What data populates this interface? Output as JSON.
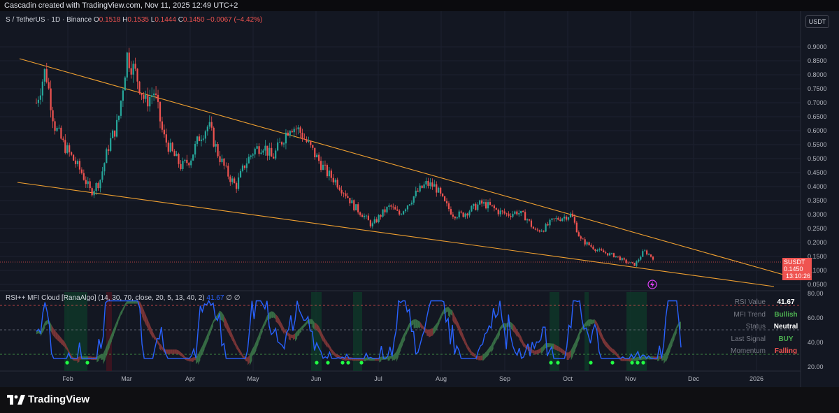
{
  "header": {
    "credit": "Cascadin created with TradingView.com, Nov 11, 2025 12:49 UTC+2"
  },
  "legend": {
    "symbol": "S / TetherUS · 1D · Binance",
    "o_label": "O",
    "o": "0.1518",
    "h_label": "H",
    "h": "0.1535",
    "l_label": "L",
    "l": "0.1444",
    "c_label": "C",
    "c": "0.1450",
    "change": "−0.0067 (−4.42%)"
  },
  "currency_button": "USDT",
  "price_tag": {
    "symbol": "SUSDT",
    "price": "0.1450",
    "countdown": "13:10:26"
  },
  "indicator": {
    "name": "RSI++ MFI Cloud [RanaAlgo] (14, 30, 70, close, 20, 5, 13, 40, 2)",
    "value": "41.67",
    "extra": "∅ ∅"
  },
  "info_table": [
    {
      "key": "RSI Value",
      "value": "41.67",
      "color": "#ffffff"
    },
    {
      "key": "MFI Trend",
      "value": "Bullish",
      "color": "#4caf50"
    },
    {
      "key": "Status",
      "value": "Neutral",
      "color": "#ffffff"
    },
    {
      "key": "Last Signal",
      "value": "BUY",
      "color": "#4caf50"
    },
    {
      "key": "Momentum",
      "value": "Falling",
      "color": "#ef5350"
    }
  ],
  "footer": {
    "brand": "TradingView"
  },
  "chart_data": {
    "type": "candlestick",
    "price_axis": {
      "ticks": [
        "0.9000",
        "0.8500",
        "0.8000",
        "0.7500",
        "0.7000",
        "0.6500",
        "0.6000",
        "0.5500",
        "0.5000",
        "0.4500",
        "0.4000",
        "0.3500",
        "0.3000",
        "0.2500",
        "0.2000",
        "0.1500",
        "0.1000",
        "0.0500"
      ],
      "ylim": [
        0.05,
        0.9
      ]
    },
    "time_axis": [
      "Feb",
      "Mar",
      "Apr",
      "May",
      "Jun",
      "Jul",
      "Aug",
      "Sep",
      "Oct",
      "Nov",
      "Dec",
      "2026"
    ],
    "indicator_axis": {
      "ticks": [
        "80.00",
        "60.00",
        "40.00",
        "20.00"
      ],
      "ylim": [
        20,
        80
      ]
    },
    "last_price": 0.145,
    "trendlines": [
      {
        "name": "upper",
        "from": [
          "Jan 2025",
          0.85
        ],
        "to": [
          "Dec 2025",
          0.09
        ]
      },
      {
        "name": "lower",
        "from": [
          "Jan 2025",
          0.425
        ],
        "to": [
          "Dec 2025",
          0.055
        ]
      }
    ],
    "price_path": [
      [
        "Jan 2025",
        0.7
      ],
      [
        "Jan 2025",
        0.82
      ],
      [
        "Jan 2025",
        0.62
      ],
      [
        "Jan 2025",
        0.55
      ],
      [
        "Jan 2025",
        0.5
      ],
      [
        "Feb",
        0.45
      ],
      [
        "Feb",
        0.38
      ],
      [
        "Feb",
        0.42
      ],
      [
        "Feb",
        0.55
      ],
      [
        "Feb",
        0.63
      ],
      [
        "Feb",
        0.87
      ],
      [
        "Feb",
        0.8
      ],
      [
        "Mar",
        0.7
      ],
      [
        "Mar",
        0.74
      ],
      [
        "Mar",
        0.58
      ],
      [
        "Mar",
        0.52
      ],
      [
        "Mar",
        0.47
      ],
      [
        "Mar",
        0.5
      ],
      [
        "Apr",
        0.58
      ],
      [
        "Apr",
        0.62
      ],
      [
        "Apr",
        0.52
      ],
      [
        "Apr",
        0.45
      ],
      [
        "Apr",
        0.4
      ],
      [
        "Apr",
        0.48
      ],
      [
        "Apr",
        0.53
      ],
      [
        "May",
        0.55
      ],
      [
        "May",
        0.5
      ],
      [
        "May",
        0.56
      ],
      [
        "May",
        0.62
      ],
      [
        "May",
        0.6
      ],
      [
        "May",
        0.55
      ],
      [
        "May",
        0.5
      ],
      [
        "Jun",
        0.45
      ],
      [
        "Jun",
        0.42
      ],
      [
        "Jun",
        0.38
      ],
      [
        "Jun",
        0.33
      ],
      [
        "Jun",
        0.3
      ],
      [
        "Jun",
        0.26
      ],
      [
        "Jun",
        0.3
      ],
      [
        "Jul",
        0.33
      ],
      [
        "Jul",
        0.3
      ],
      [
        "Jul",
        0.34
      ],
      [
        "Jul",
        0.38
      ],
      [
        "Jul",
        0.41
      ],
      [
        "Jul",
        0.4
      ],
      [
        "Aug",
        0.34
      ],
      [
        "Aug",
        0.3
      ],
      [
        "Aug",
        0.3
      ],
      [
        "Aug",
        0.32
      ],
      [
        "Aug",
        0.34
      ],
      [
        "Aug",
        0.33
      ],
      [
        "Sep",
        0.31
      ],
      [
        "Sep",
        0.3
      ],
      [
        "Sep",
        0.31
      ],
      [
        "Sep",
        0.29
      ],
      [
        "Sep",
        0.24
      ],
      [
        "Sep",
        0.25
      ],
      [
        "Sep",
        0.28
      ],
      [
        "Oct",
        0.29
      ],
      [
        "Oct",
        0.3
      ],
      [
        "Oct",
        0.21
      ],
      [
        "Oct",
        0.19
      ],
      [
        "Oct",
        0.17
      ],
      [
        "Oct",
        0.16
      ],
      [
        "Oct",
        0.15
      ],
      [
        "Nov",
        0.13
      ],
      [
        "Nov",
        0.12
      ],
      [
        "Nov",
        0.17
      ],
      [
        "Nov",
        0.145
      ]
    ]
  }
}
